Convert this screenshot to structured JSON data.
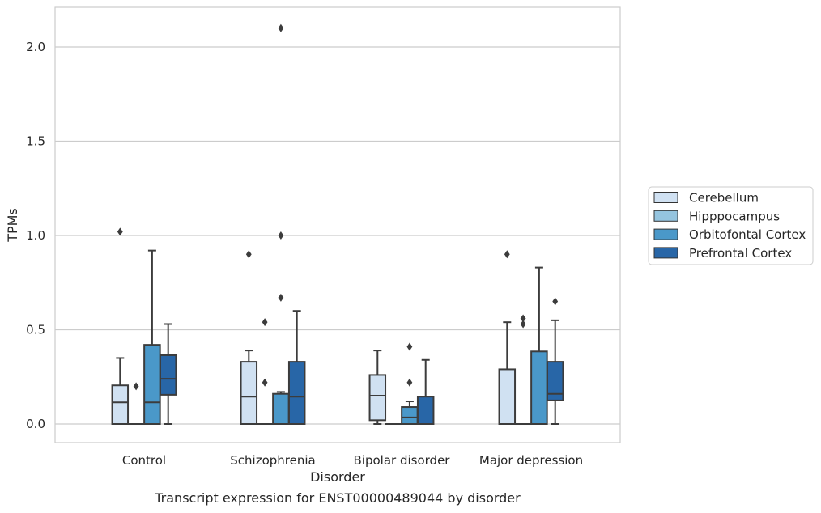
{
  "figure": {
    "caption": "Transcript expression for ENST00000489044 by disorder"
  },
  "chart_data": {
    "type": "boxplot",
    "xlabel": "Disorder",
    "ylabel": "TPMs",
    "ylim": [
      -0.1,
      2.22
    ],
    "yticks": [
      0.0,
      0.5,
      1.0,
      1.5,
      2.0
    ],
    "ytick_labels": [
      "0.0",
      "0.5",
      "1.0",
      "1.5",
      "2.0"
    ],
    "grid": "horizontal",
    "legend_position": "right",
    "categories": [
      "Control",
      "Schizophrenia",
      "Bipolar disorder",
      "Major depression"
    ],
    "series": [
      {
        "name": "Cerebellum",
        "color": "#d0e1f2",
        "boxes": [
          {
            "whislo": 0.0,
            "q1": 0.0,
            "med": 0.115,
            "q3": 0.205,
            "whishi": 0.35,
            "fliers": [
              1.02
            ]
          },
          {
            "whislo": 0.0,
            "q1": 0.0,
            "med": 0.145,
            "q3": 0.33,
            "whishi": 0.39,
            "fliers": [
              0.9
            ]
          },
          {
            "whislo": 0.0,
            "q1": 0.02,
            "med": 0.15,
            "q3": 0.26,
            "whishi": 0.39,
            "fliers": []
          },
          {
            "whislo": 0.0,
            "q1": 0.0,
            "med": 0.0,
            "q3": 0.29,
            "whishi": 0.54,
            "fliers": [
              0.9
            ]
          }
        ]
      },
      {
        "name": "Hipppocampus",
        "color": "#94c4df",
        "boxes": [
          {
            "whislo": 0.0,
            "q1": 0.0,
            "med": 0.0,
            "q3": 0.0,
            "whishi": 0.0,
            "fliers": [
              0.2
            ]
          },
          {
            "whislo": 0.0,
            "q1": 0.0,
            "med": 0.0,
            "q3": 0.0,
            "whishi": 0.0,
            "fliers": [
              0.22,
              0.54
            ]
          },
          {
            "whislo": 0.0,
            "q1": 0.0,
            "med": 0.0,
            "q3": 0.0,
            "whishi": 0.0,
            "fliers": []
          },
          {
            "whislo": 0.0,
            "q1": 0.0,
            "med": 0.0,
            "q3": 0.0,
            "whishi": 0.0,
            "fliers": [
              0.53,
              0.56
            ]
          }
        ]
      },
      {
        "name": "Orbitofontal Cortex",
        "color": "#4a98c9",
        "boxes": [
          {
            "whislo": 0.0,
            "q1": 0.0,
            "med": 0.115,
            "q3": 0.42,
            "whishi": 0.92,
            "fliers": []
          },
          {
            "whislo": 0.0,
            "q1": 0.0,
            "med": 0.0,
            "q3": 0.16,
            "whishi": 0.17,
            "fliers": [
              0.67,
              1.0,
              2.1
            ]
          },
          {
            "whislo": 0.0,
            "q1": 0.0,
            "med": 0.035,
            "q3": 0.09,
            "whishi": 0.12,
            "fliers": [
              0.22,
              0.41
            ]
          },
          {
            "whislo": 0.0,
            "q1": 0.0,
            "med": 0.0,
            "q3": 0.385,
            "whishi": 0.83,
            "fliers": []
          }
        ]
      },
      {
        "name": "Prefrontal Cortex",
        "color": "#2866a7",
        "boxes": [
          {
            "whislo": 0.0,
            "q1": 0.155,
            "med": 0.24,
            "q3": 0.365,
            "whishi": 0.53,
            "fliers": []
          },
          {
            "whislo": 0.0,
            "q1": 0.0,
            "med": 0.145,
            "q3": 0.33,
            "whishi": 0.6,
            "fliers": []
          },
          {
            "whislo": 0.0,
            "q1": 0.0,
            "med": 0.0,
            "q3": 0.145,
            "whishi": 0.34,
            "fliers": []
          },
          {
            "whislo": 0.0,
            "q1": 0.125,
            "med": 0.16,
            "q3": 0.33,
            "whishi": 0.55,
            "fliers": [
              0.65
            ]
          }
        ]
      }
    ]
  }
}
